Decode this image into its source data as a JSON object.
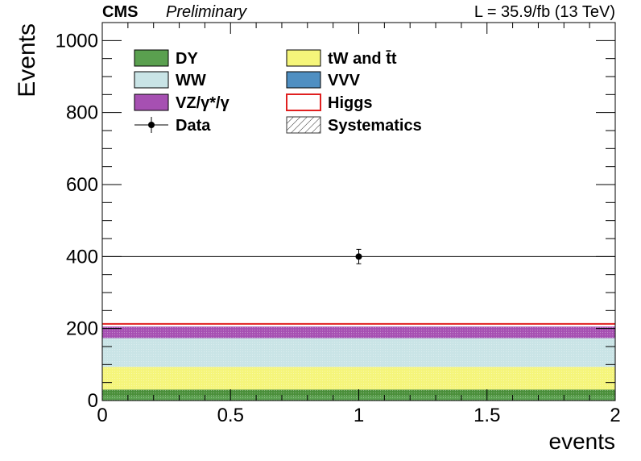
{
  "header": {
    "experiment": "CMS",
    "status": "Preliminary",
    "lumi": "L = 35.9/fb (13 TeV)"
  },
  "chart_data": {
    "type": "bar",
    "stacked": true,
    "xlabel": "events",
    "ylabel": "Events",
    "xlim": [
      0,
      2
    ],
    "ylim": [
      0,
      1050
    ],
    "x_ticks": [
      "0",
      "0.5",
      "1",
      "1.5",
      "2"
    ],
    "y_ticks": [
      "0",
      "200",
      "400",
      "600",
      "800",
      "1000"
    ],
    "bin": [
      0,
      2
    ],
    "stack": [
      {
        "name": "VVV",
        "value": 0.5,
        "color": "#4f8fc2"
      },
      {
        "name": "DY",
        "value": 12,
        "color": "#5aa04f"
      },
      {
        "name": "tW and t̄t",
        "value": 18,
        "color": "#4a8f3a"
      },
      {
        "name": "tW and t̄t",
        "value": 63,
        "color": "#f5f57a"
      },
      {
        "name": "WW",
        "value": 80,
        "color": "#c9e4e6"
      },
      {
        "name": "VZ/γ*/γ",
        "value": 32,
        "color": "#a650b2"
      }
    ],
    "higgs": {
      "name": "Higgs",
      "value": 213,
      "color": "#e02020"
    },
    "data": {
      "name": "Data",
      "x": 1,
      "y": 400,
      "err": 20
    },
    "legend_placement": "top-left",
    "legend": [
      {
        "name": "DY",
        "kind": "fill",
        "color": "#5aa04f"
      },
      {
        "name": "tW and t̄t",
        "kind": "fill",
        "color": "#f5f57a"
      },
      {
        "name": "WW",
        "kind": "fill",
        "color": "#c9e4e6"
      },
      {
        "name": "VVV",
        "kind": "fill",
        "color": "#4f8fc2"
      },
      {
        "name": "VZ/γ*/γ",
        "kind": "fill",
        "color": "#a650b2"
      },
      {
        "name": "Higgs",
        "kind": "line",
        "color": "#e02020"
      },
      {
        "name": "Data",
        "kind": "marker",
        "color": "#000000"
      },
      {
        "name": "Systematics",
        "kind": "hatch",
        "color": "#333333"
      }
    ]
  }
}
